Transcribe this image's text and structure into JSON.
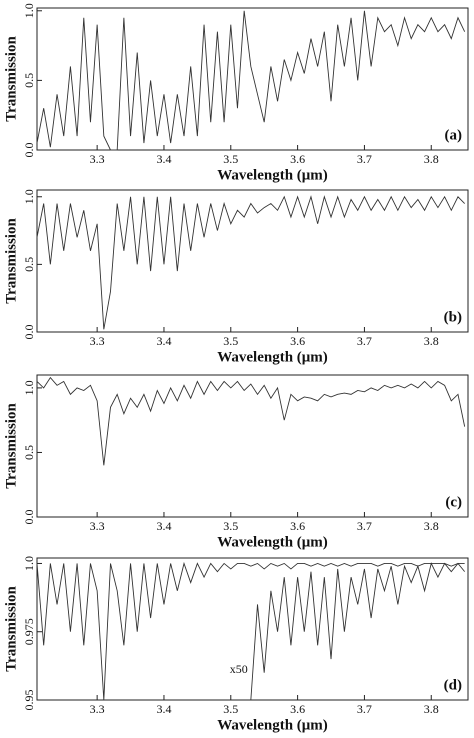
{
  "chart_data": [
    {
      "type": "line",
      "label": "(a)",
      "xlabel": "Wavelength (μm)",
      "ylabel": "Transmission",
      "x": [
        3.21,
        3.22,
        3.23,
        3.24,
        3.25,
        3.26,
        3.27,
        3.28,
        3.29,
        3.3,
        3.31,
        3.32,
        3.33,
        3.34,
        3.35,
        3.36,
        3.37,
        3.38,
        3.39,
        3.4,
        3.41,
        3.42,
        3.43,
        3.44,
        3.45,
        3.46,
        3.47,
        3.48,
        3.49,
        3.5,
        3.51,
        3.52,
        3.53,
        3.54,
        3.55,
        3.56,
        3.57,
        3.58,
        3.59,
        3.6,
        3.61,
        3.62,
        3.63,
        3.64,
        3.65,
        3.66,
        3.67,
        3.68,
        3.69,
        3.7,
        3.71,
        3.72,
        3.73,
        3.74,
        3.75,
        3.76,
        3.77,
        3.78,
        3.79,
        3.8,
        3.81,
        3.82,
        3.83,
        3.84,
        3.85
      ],
      "series": [
        {
          "color": "#333333",
          "values": [
            0.05,
            0.3,
            0.02,
            0.4,
            0.1,
            0.6,
            0.1,
            0.95,
            0.2,
            0.9,
            0.1,
            0.0,
            0.0,
            0.95,
            0.1,
            0.7,
            0.05,
            0.5,
            0.1,
            0.4,
            0.05,
            0.4,
            0.1,
            0.6,
            0.1,
            0.9,
            0.2,
            0.85,
            0.2,
            0.9,
            0.3,
            1.0,
            0.6,
            0.4,
            0.2,
            0.6,
            0.35,
            0.65,
            0.5,
            0.7,
            0.55,
            0.8,
            0.6,
            0.85,
            0.35,
            0.9,
            0.6,
            0.95,
            0.5,
            1.0,
            0.6,
            0.95,
            0.85,
            0.9,
            0.75,
            0.95,
            0.8,
            0.9,
            0.85,
            0.95,
            0.85,
            0.9,
            0.8,
            0.95,
            0.85
          ]
        }
      ],
      "xlim": [
        3.21,
        3.855
      ],
      "ylim": [
        0,
        1.02
      ],
      "xticks": [
        3.3,
        3.4,
        3.5,
        3.6,
        3.7,
        3.8
      ],
      "yticks": [
        {
          "value": 0,
          "label": "0.0"
        },
        0.5,
        {
          "value": 1,
          "label": "1.0"
        }
      ]
    },
    {
      "type": "line",
      "label": "(b)",
      "xlabel": "Wavelength (μm)",
      "ylabel": "Transmission",
      "x": [
        3.21,
        3.22,
        3.23,
        3.24,
        3.25,
        3.26,
        3.27,
        3.28,
        3.29,
        3.3,
        3.31,
        3.32,
        3.33,
        3.34,
        3.35,
        3.36,
        3.37,
        3.38,
        3.39,
        3.4,
        3.41,
        3.42,
        3.43,
        3.44,
        3.45,
        3.46,
        3.47,
        3.48,
        3.49,
        3.5,
        3.51,
        3.52,
        3.53,
        3.54,
        3.55,
        3.56,
        3.57,
        3.58,
        3.59,
        3.6,
        3.61,
        3.62,
        3.63,
        3.64,
        3.65,
        3.66,
        3.67,
        3.68,
        3.69,
        3.7,
        3.71,
        3.72,
        3.73,
        3.74,
        3.75,
        3.76,
        3.77,
        3.78,
        3.79,
        3.8,
        3.81,
        3.82,
        3.83,
        3.84,
        3.85
      ],
      "series": [
        {
          "color": "#333333",
          "values": [
            0.7,
            0.95,
            0.5,
            0.95,
            0.6,
            0.95,
            0.7,
            0.9,
            0.6,
            0.8,
            0.02,
            0.3,
            0.95,
            0.6,
            1.0,
            0.5,
            1.0,
            0.45,
            1.0,
            0.5,
            1.0,
            0.45,
            0.95,
            0.6,
            0.95,
            0.7,
            0.95,
            0.75,
            0.95,
            0.8,
            0.9,
            0.85,
            0.95,
            0.88,
            0.92,
            0.95,
            0.9,
            1.0,
            0.85,
            1.0,
            0.85,
            1.0,
            0.8,
            1.0,
            0.85,
            1.0,
            0.85,
            0.98,
            0.9,
            1.0,
            0.9,
            0.98,
            0.9,
            1.0,
            0.9,
            1.0,
            0.92,
            0.98,
            0.9,
            1.0,
            0.92,
            1.0,
            0.9,
            1.0,
            0.95
          ]
        }
      ],
      "xlim": [
        3.21,
        3.855
      ],
      "ylim": [
        0,
        1.05
      ],
      "xticks": [
        3.3,
        3.4,
        3.5,
        3.6,
        3.7,
        3.8
      ],
      "yticks": [
        {
          "value": 0,
          "label": "0.0"
        },
        0.5,
        {
          "value": 1,
          "label": "1.0"
        }
      ]
    },
    {
      "type": "line",
      "label": "(c)",
      "xlabel": "Wavelength (μm)",
      "ylabel": "Transmission",
      "x": [
        3.21,
        3.22,
        3.23,
        3.24,
        3.25,
        3.26,
        3.27,
        3.28,
        3.29,
        3.3,
        3.31,
        3.32,
        3.33,
        3.34,
        3.35,
        3.36,
        3.37,
        3.38,
        3.39,
        3.4,
        3.41,
        3.42,
        3.43,
        3.44,
        3.45,
        3.46,
        3.47,
        3.48,
        3.49,
        3.5,
        3.51,
        3.52,
        3.53,
        3.54,
        3.55,
        3.56,
        3.57,
        3.58,
        3.59,
        3.6,
        3.61,
        3.62,
        3.63,
        3.64,
        3.65,
        3.66,
        3.67,
        3.68,
        3.69,
        3.7,
        3.71,
        3.72,
        3.73,
        3.74,
        3.75,
        3.76,
        3.77,
        3.78,
        3.79,
        3.8,
        3.81,
        3.82,
        3.83,
        3.84,
        3.85
      ],
      "series": [
        {
          "color": "#333333",
          "values": [
            1.05,
            1.0,
            1.08,
            1.02,
            1.05,
            0.95,
            1.0,
            0.98,
            1.02,
            0.9,
            0.4,
            0.85,
            0.95,
            0.8,
            0.92,
            0.85,
            0.95,
            0.82,
            0.98,
            0.88,
            1.0,
            0.9,
            1.02,
            0.92,
            1.05,
            0.95,
            1.05,
            0.98,
            1.05,
            1.0,
            1.05,
            0.98,
            1.03,
            0.95,
            1.02,
            0.92,
            1.0,
            0.75,
            0.95,
            0.9,
            0.93,
            0.92,
            0.9,
            0.95,
            0.93,
            0.95,
            0.96,
            0.95,
            0.98,
            0.97,
            1.0,
            0.98,
            1.02,
            1.0,
            1.02,
            1.0,
            1.03,
            1.0,
            1.05,
            1.0,
            1.05,
            1.02,
            0.9,
            0.95,
            0.7
          ]
        }
      ],
      "xlim": [
        3.21,
        3.855
      ],
      "ylim": [
        0,
        1.1
      ],
      "xticks": [
        3.3,
        3.4,
        3.5,
        3.6,
        3.7,
        3.8
      ],
      "yticks": [
        {
          "value": 0,
          "label": "0.0"
        },
        0.5,
        {
          "value": 1,
          "label": "1.0"
        }
      ]
    },
    {
      "type": "line",
      "label": "(d)",
      "xlabel": "Wavelength (μm)",
      "ylabel": "Transmission",
      "annotation": "x50",
      "x": [
        3.21,
        3.22,
        3.23,
        3.24,
        3.25,
        3.26,
        3.27,
        3.28,
        3.29,
        3.3,
        3.31,
        3.32,
        3.33,
        3.34,
        3.35,
        3.36,
        3.37,
        3.38,
        3.39,
        3.4,
        3.41,
        3.42,
        3.43,
        3.44,
        3.45,
        3.46,
        3.47,
        3.48,
        3.49,
        3.5,
        3.51,
        3.52,
        3.53,
        3.54,
        3.55,
        3.56,
        3.57,
        3.58,
        3.59,
        3.6,
        3.61,
        3.62,
        3.63,
        3.64,
        3.65,
        3.66,
        3.67,
        3.68,
        3.69,
        3.7,
        3.71,
        3.72,
        3.73,
        3.74,
        3.75,
        3.76,
        3.77,
        3.78,
        3.79,
        3.8,
        3.81,
        3.82,
        3.83,
        3.84,
        3.85
      ],
      "series": [
        {
          "color": "#333333",
          "values": [
            1.0,
            0.97,
            1.0,
            0.985,
            1.0,
            0.975,
            1.0,
            0.97,
            1.0,
            0.99,
            0.95,
            1.0,
            0.99,
            0.97,
            1.0,
            0.975,
            1.0,
            0.98,
            1.0,
            0.985,
            1.0,
            0.99,
            1.0,
            0.993,
            1.0,
            0.995,
            1.0,
            0.997,
            1.0,
            0.998,
            1.0,
            1.0,
            0.999,
            1.0,
            0.998,
            1.0,
            0.999,
            1.0,
            0.998,
            1.0,
            1.0,
            0.999,
            1.0,
            0.999,
            1.0,
            0.999,
            1.0,
            0.999,
            1.0,
            1.0,
            1.0,
            0.999,
            1.0,
            1.0,
            0.999,
            1.0,
            1.0,
            0.999,
            1.0,
            1.0,
            1.0,
            1.0,
            0.999,
            1.0,
            1.0
          ]
        },
        {
          "color": "#333333",
          "values": [
            null,
            null,
            null,
            null,
            null,
            null,
            null,
            null,
            null,
            null,
            null,
            null,
            null,
            null,
            null,
            null,
            null,
            null,
            null,
            null,
            null,
            null,
            null,
            null,
            null,
            null,
            null,
            null,
            null,
            null,
            null,
            null,
            0.95,
            0.985,
            0.96,
            0.99,
            0.975,
            0.995,
            0.97,
            0.995,
            0.975,
            0.997,
            0.97,
            0.995,
            0.965,
            0.998,
            0.975,
            0.995,
            0.985,
            0.998,
            0.98,
            0.998,
            0.99,
            0.999,
            0.985,
            0.999,
            0.993,
            0.999,
            0.99,
            1.0,
            0.995,
            1.0,
            0.997,
            1.0,
            0.997
          ]
        }
      ],
      "xlim": [
        3.21,
        3.855
      ],
      "ylim": [
        0.95,
        1.002
      ],
      "xticks": [
        3.3,
        3.4,
        3.5,
        3.6,
        3.7,
        3.8
      ],
      "yticks": [
        0.95,
        0.975,
        {
          "value": 1,
          "label": "1.0"
        }
      ]
    }
  ]
}
